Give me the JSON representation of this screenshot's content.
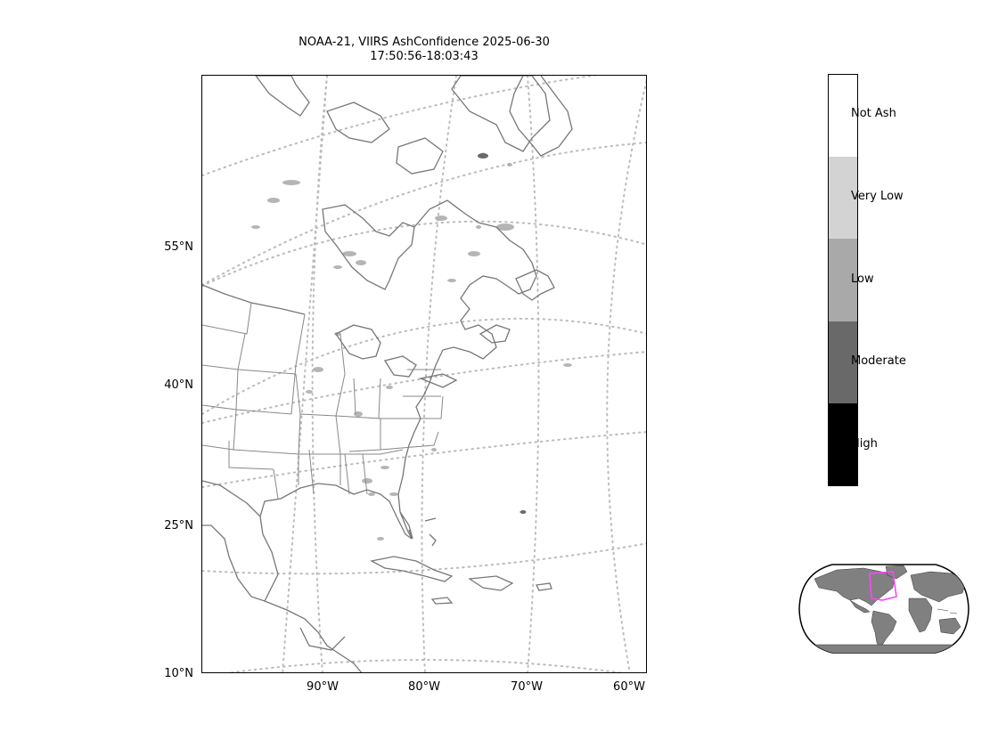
{
  "title": {
    "line1": "NOAA-21, VIIRS AshConfidence 2025-06-30",
    "line2": "17:50:56-18:03:43"
  },
  "axes": {
    "lat_labels": [
      "55°N",
      "40°N",
      "25°N",
      "10°N"
    ],
    "lon_labels": [
      "90°W",
      "80°W",
      "70°W",
      "60°W"
    ],
    "graticule": "dotted"
  },
  "colorbar": {
    "categories": [
      {
        "label": "Not Ash",
        "color": "#ffffff"
      },
      {
        "label": "Very Low",
        "color": "#d3d3d3"
      },
      {
        "label": "Low",
        "color": "#a9a9a9"
      },
      {
        "label": "Moderate",
        "color": "#696969"
      },
      {
        "label": "High",
        "color": "#000000"
      }
    ]
  },
  "colors": {
    "coastline": "#777777",
    "graticule": "#bbbbbb",
    "inset_land": "#808080",
    "inset_highlight": "#ff44ff"
  },
  "inset": {
    "projection": "robinson-world",
    "highlight_region": "north-america-east"
  }
}
